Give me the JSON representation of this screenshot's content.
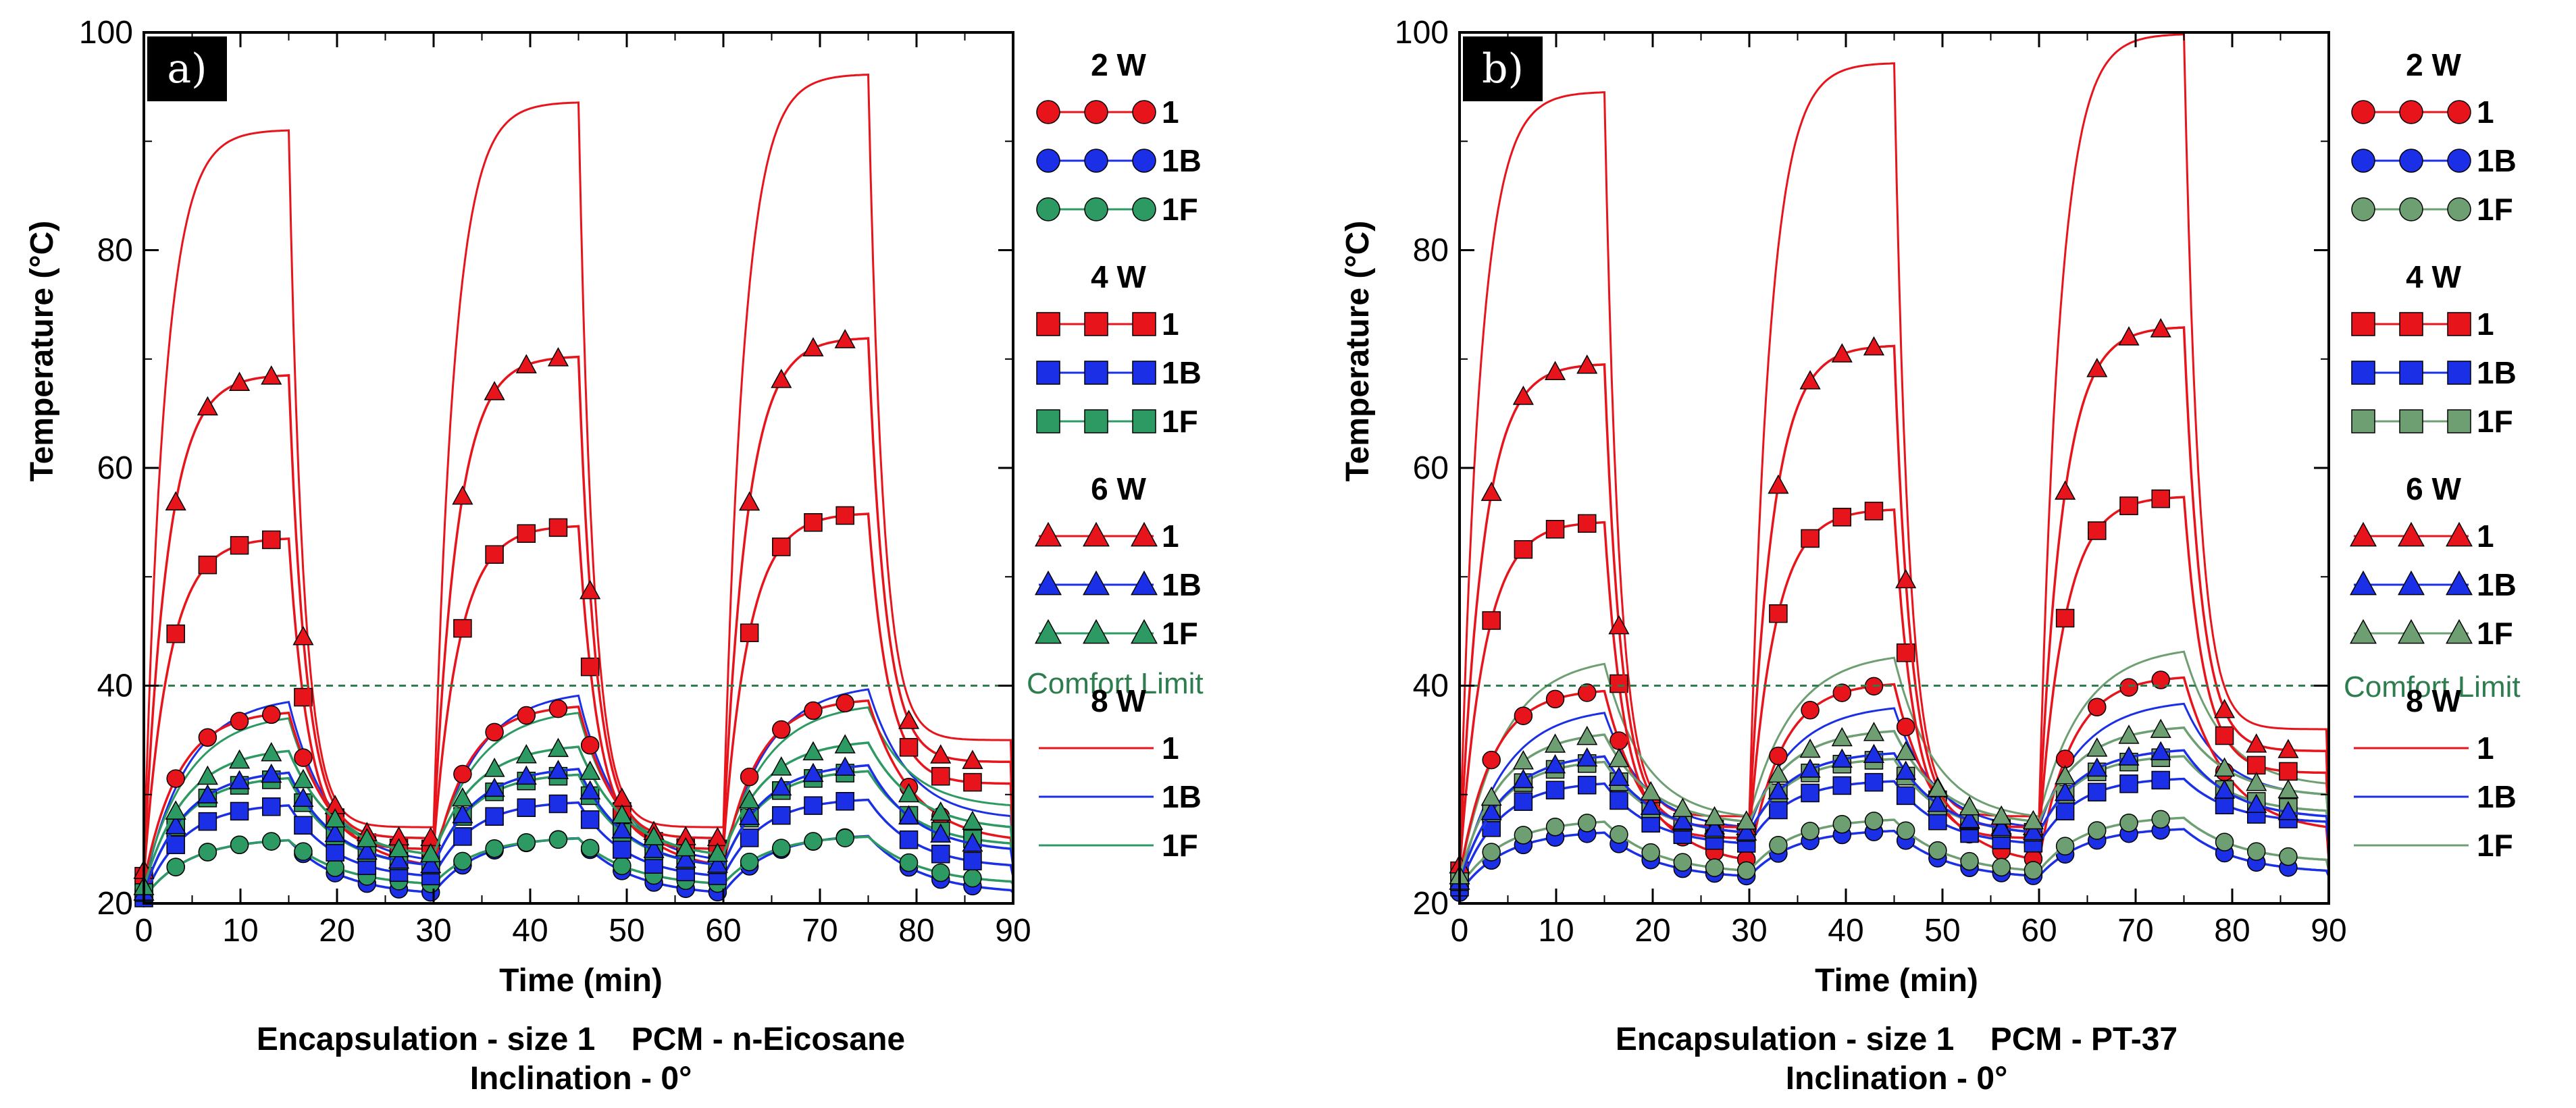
{
  "colors": {
    "red": "#e8141c",
    "blue": "#1a2fe6",
    "green_a": "#2e9a63",
    "green_b": "#6e9f72",
    "comfort": "#2e7d4f"
  },
  "chart_data": [
    {
      "type": "line",
      "panel": "a)",
      "xlabel": "Time (min)",
      "ylabel": "Temperature (°C)",
      "xlim": [
        0,
        90
      ],
      "ylim": [
        20,
        100
      ],
      "xticks": [
        "0",
        "10",
        "20",
        "30",
        "40",
        "50",
        "60",
        "70",
        "80",
        "90"
      ],
      "yticks": [
        "20",
        "40",
        "60",
        "80",
        "100"
      ],
      "comfort_limit": 40,
      "comfort_label": "Comfort Limit",
      "caption_line1": "Encapsulation - size 1    PCM - n-Eicosane",
      "caption_line2": "Inclination - 0°",
      "legend": [
        {
          "group": "2 W",
          "entries": [
            "1",
            "1B",
            "1F"
          ]
        },
        {
          "group": "4 W",
          "entries": [
            "1",
            "1B",
            "1F"
          ]
        },
        {
          "group": "6 W",
          "entries": [
            "1",
            "1B",
            "1F"
          ]
        },
        {
          "group": "8 W",
          "entries": [
            "1",
            "1B",
            "1F"
          ]
        }
      ],
      "series": [
        {
          "name": "2 W - 1",
          "marker": "circle",
          "color_key": "red",
          "peak": 37.5,
          "base": 22,
          "valley": 23.5,
          "cool_end": 26,
          "on_p": 1.9,
          "off_p": 0.75
        },
        {
          "name": "2 W - 1B",
          "marker": "circle",
          "color_key": "blue",
          "peak": 25.8,
          "base": 20.5,
          "valley": 21,
          "cool_end": 21.2,
          "on_p": 1.5,
          "off_p": 0.9
        },
        {
          "name": "2 W - 1F",
          "marker": "circle",
          "color_key": "green_a",
          "peak": 25.8,
          "base": 20.5,
          "valley": 21.8,
          "cool_end": 22,
          "on_p": 1.5,
          "off_p": 0.9
        },
        {
          "name": "4 W - 1",
          "marker": "square",
          "color_key": "red",
          "peak": 53.5,
          "base": 22.5,
          "valley": 25,
          "cool_end": 31,
          "on_p": 2.6,
          "off_p": 0.35
        },
        {
          "name": "4 W - 1B",
          "marker": "square",
          "color_key": "blue",
          "peak": 29,
          "base": 20.5,
          "valley": 22.5,
          "cool_end": 23.5,
          "on_p": 1.7,
          "off_p": 0.8
        },
        {
          "name": "4 W - 1F",
          "marker": "square",
          "color_key": "green_a",
          "peak": 31.5,
          "base": 21,
          "valley": 23.5,
          "cool_end": 25.5,
          "on_p": 1.7,
          "off_p": 0.8
        },
        {
          "name": "6 W - 1",
          "marker": "triangle",
          "color_key": "red",
          "peak": 68.5,
          "base": 23,
          "valley": 26,
          "cool_end": 33,
          "on_p": 2.8,
          "off_p": 0.3
        },
        {
          "name": "6 W - 1B",
          "marker": "triangle",
          "color_key": "blue",
          "peak": 32,
          "base": 21,
          "valley": 23.5,
          "cool_end": 25,
          "on_p": 1.6,
          "off_p": 0.8
        },
        {
          "name": "6 W - 1F",
          "marker": "triangle",
          "color_key": "green_a",
          "peak": 34,
          "base": 21.5,
          "valley": 24.5,
          "cool_end": 27,
          "on_p": 1.6,
          "off_p": 0.8
        },
        {
          "name": "8 W - 1",
          "marker": "none",
          "color_key": "red",
          "peak": 91,
          "base": 23.5,
          "valley": 27,
          "cool_end": 35,
          "on_p": 3.2,
          "off_p": 0.25
        },
        {
          "name": "8 W - 1B",
          "marker": "none",
          "color_key": "blue",
          "peak": 38.5,
          "base": 21.5,
          "valley": 24,
          "cool_end": 28,
          "on_p": 1.5,
          "off_p": 0.7
        },
        {
          "name": "8 W - 1F",
          "marker": "none",
          "color_key": "green_a",
          "peak": 37,
          "base": 22,
          "valley": 24.5,
          "cool_end": 29,
          "on_p": 1.5,
          "off_p": 0.7
        }
      ]
    },
    {
      "type": "line",
      "panel": "b)",
      "xlabel": "Time (min)",
      "ylabel": "Temperature (°C)",
      "xlim": [
        0,
        90
      ],
      "ylim": [
        20,
        100
      ],
      "xticks": [
        "0",
        "10",
        "20",
        "30",
        "40",
        "50",
        "60",
        "70",
        "80",
        "90"
      ],
      "yticks": [
        "20",
        "40",
        "60",
        "80",
        "100"
      ],
      "comfort_limit": 40,
      "comfort_label": "Comfort Limit",
      "caption_line1": "Encapsulation - size 1    PCM - PT-37",
      "caption_line2": "Inclination - 0°",
      "legend": [
        {
          "group": "2 W",
          "entries": [
            "1",
            "1B",
            "1F"
          ]
        },
        {
          "group": "4 W",
          "entries": [
            "1",
            "1B",
            "1F"
          ]
        },
        {
          "group": "6 W",
          "entries": [
            "1",
            "1B",
            "1F"
          ]
        },
        {
          "group": "8 W",
          "entries": [
            "1",
            "1B",
            "1F"
          ]
        }
      ],
      "series": [
        {
          "name": "2 W - 1",
          "marker": "circle",
          "color_key": "red",
          "peak": 39.5,
          "base": 22.5,
          "valley": 24,
          "cool_end": 27,
          "on_p": 2.0,
          "off_p": 0.75
        },
        {
          "name": "2 W - 1B",
          "marker": "circle",
          "color_key": "blue",
          "peak": 26.5,
          "base": 21,
          "valley": 22.5,
          "cool_end": 23,
          "on_p": 1.5,
          "off_p": 0.9
        },
        {
          "name": "2 W - 1F",
          "marker": "circle",
          "color_key": "green_b",
          "peak": 27.5,
          "base": 21.5,
          "valley": 23,
          "cool_end": 24,
          "on_p": 1.5,
          "off_p": 0.9
        },
        {
          "name": "4 W - 1",
          "marker": "square",
          "color_key": "red",
          "peak": 55,
          "base": 23,
          "valley": 26,
          "cool_end": 32,
          "on_p": 2.6,
          "off_p": 0.35
        },
        {
          "name": "4 W - 1B",
          "marker": "square",
          "color_key": "blue",
          "peak": 31,
          "base": 21.5,
          "valley": 25.5,
          "cool_end": 27.5,
          "on_p": 1.7,
          "off_p": 0.8
        },
        {
          "name": "4 W - 1F",
          "marker": "square",
          "color_key": "green_b",
          "peak": 33,
          "base": 22,
          "valley": 26.5,
          "cool_end": 28.5,
          "on_p": 1.7,
          "off_p": 0.8
        },
        {
          "name": "6 W - 1",
          "marker": "triangle",
          "color_key": "red",
          "peak": 69.5,
          "base": 23.5,
          "valley": 27,
          "cool_end": 34,
          "on_p": 2.8,
          "off_p": 0.3
        },
        {
          "name": "6 W - 1B",
          "marker": "triangle",
          "color_key": "blue",
          "peak": 33.5,
          "base": 22,
          "valley": 26.5,
          "cool_end": 28,
          "on_p": 1.6,
          "off_p": 0.8
        },
        {
          "name": "6 W - 1F",
          "marker": "triangle",
          "color_key": "green_b",
          "peak": 35.5,
          "base": 22.5,
          "valley": 27.5,
          "cool_end": 30,
          "on_p": 1.6,
          "off_p": 0.8
        },
        {
          "name": "8 W - 1",
          "marker": "none",
          "color_key": "red",
          "peak": 94.5,
          "base": 24,
          "valley": 28,
          "cool_end": 36,
          "on_p": 3.2,
          "off_p": 0.25
        },
        {
          "name": "8 W - 1B",
          "marker": "none",
          "color_key": "blue",
          "peak": 37.5,
          "base": 22,
          "valley": 27,
          "cool_end": 30,
          "on_p": 1.5,
          "off_p": 0.7
        },
        {
          "name": "8 W - 1F",
          "marker": "none",
          "color_key": "green_b",
          "peak": 42,
          "base": 22.5,
          "valley": 28,
          "cool_end": 31,
          "on_p": 1.5,
          "off_p": 0.7
        }
      ]
    }
  ]
}
